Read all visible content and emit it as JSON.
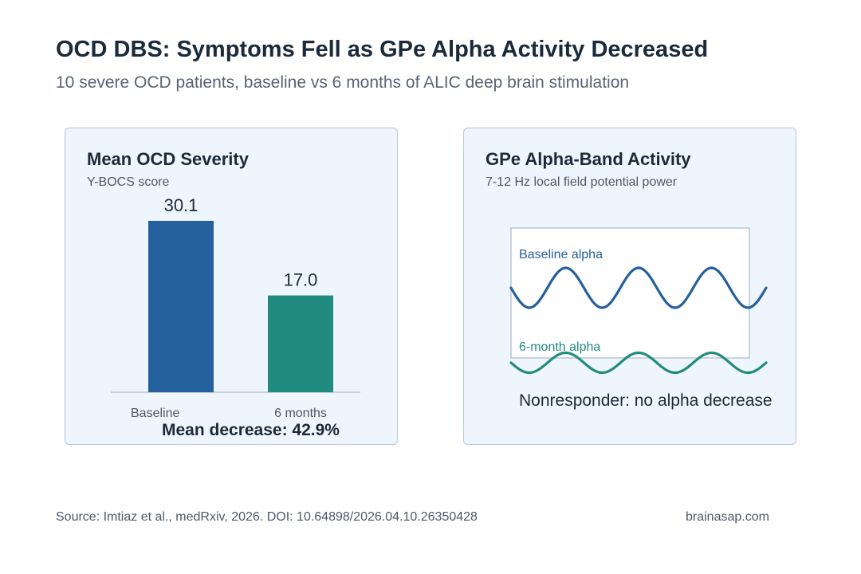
{
  "title": "OCD DBS: Symptoms Fell as GPe Alpha Activity Decreased",
  "subtitle": "10 severe OCD patients, baseline vs 6 months of ALIC deep brain stimulation",
  "colors": {
    "baseline": "#245f9e",
    "six_month": "#228b80",
    "panel_bg": "#eef5fc",
    "panel_border": "#b9c7d6"
  },
  "chart_data": [
    {
      "type": "bar",
      "title": "Mean OCD Severity",
      "subtitle": "Y-BOCS score",
      "categories": [
        "Baseline",
        "6 months"
      ],
      "values": [
        30.1,
        17.0
      ],
      "value_labels": [
        "30.1",
        "17.0"
      ],
      "ylim": [
        0,
        30.1
      ],
      "grid": false,
      "annotation": "Mean decrease: 42.9%"
    },
    {
      "type": "line",
      "title": "GPe Alpha-Band Activity",
      "subtitle": "7-12 Hz local field potential power",
      "series": [
        {
          "name": "Baseline alpha",
          "cycles": 3.5,
          "relative_amplitude": 1.0
        },
        {
          "name": "6-month alpha",
          "cycles": 3.5,
          "relative_amplitude": 0.5
        }
      ],
      "annotation": "Nonresponder: no alpha decrease"
    }
  ],
  "footer": {
    "source": "Source: Imtiaz et al., medRxiv, 2026. DOI: 10.64898/2026.04.10.26350428",
    "site": "brainasap.com"
  }
}
